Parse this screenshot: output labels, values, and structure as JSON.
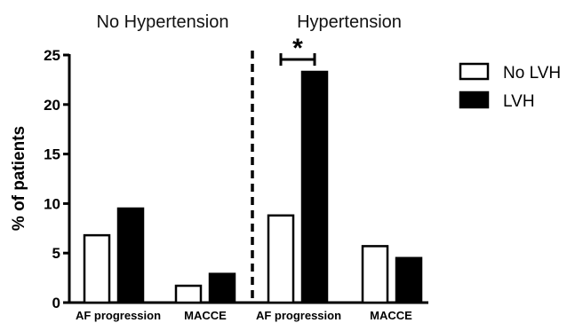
{
  "chart_data": {
    "type": "bar",
    "ylabel": "% of patients",
    "ylim": [
      0,
      25
    ],
    "yticks": [
      "0",
      "5",
      "10",
      "15",
      "20",
      "25"
    ],
    "panels": [
      {
        "title": "No Hypertension"
      },
      {
        "title": "Hypertension"
      }
    ],
    "categories": [
      "AF progression",
      "MACCE",
      "AF progression",
      "MACCE"
    ],
    "series": [
      {
        "name": "No LVH",
        "color": "#ffffff",
        "values": [
          6.8,
          1.7,
          8.8,
          5.7
        ]
      },
      {
        "name": "LVH",
        "color": "#000000",
        "values": [
          9.5,
          2.9,
          23.3,
          4.5
        ]
      }
    ],
    "annotations": [
      {
        "text": "*",
        "between": [
          "No LVH",
          "LVH"
        ],
        "category_index": 2
      }
    ]
  }
}
